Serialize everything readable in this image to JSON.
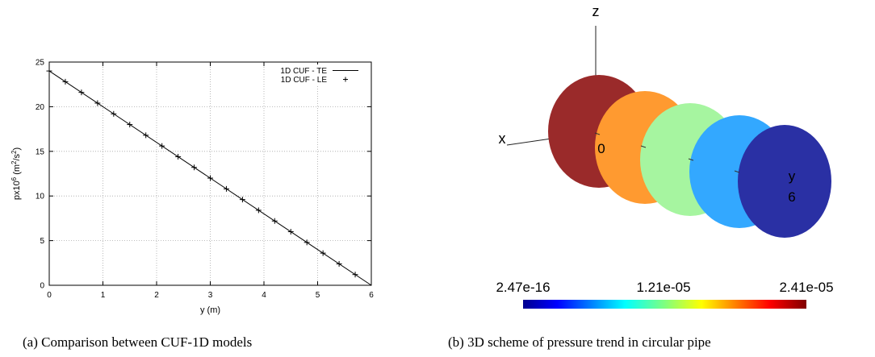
{
  "panel_a": {
    "caption": "(a)  Comparison between CUF-1D models"
  },
  "panel_b": {
    "caption": "(b) 3D scheme of pressure trend in circular pipe",
    "axis_labels": {
      "z": "z",
      "x": "x",
      "y": "y"
    },
    "point_labels": {
      "start": "0",
      "end": "6"
    },
    "disk_colors": [
      "#9a2a2a",
      "#ff9a30",
      "#a6f5a0",
      "#33a8ff",
      "#2a30a4"
    ],
    "colorbar": {
      "min_label": "2.47e-16",
      "mid_label": "1.21e-05",
      "max_label": "2.41e-05",
      "colormap": "jet"
    }
  },
  "chart_data": {
    "type": "line",
    "title": "",
    "xlabel": "y (m)",
    "ylabel_parts": {
      "base": "px10",
      "exp": "6",
      "unit_open": " (m",
      "unit_exp1": "2",
      "unit_mid": "/s",
      "unit_exp2": "2",
      "unit_close": ")"
    },
    "xlim": [
      0,
      6
    ],
    "ylim": [
      0,
      25
    ],
    "xticks": [
      "0",
      "1",
      "2",
      "3",
      "4",
      "5",
      "6"
    ],
    "yticks": [
      "0",
      "5",
      "10",
      "15",
      "20",
      "25"
    ],
    "grid": true,
    "legend_position": "top-right",
    "series": [
      {
        "name": "1D CUF - TE",
        "style": "line",
        "x": [
          0,
          6
        ],
        "y": [
          24,
          0
        ]
      },
      {
        "name": "1D CUF - LE",
        "style": "plus-marker",
        "x": [
          0,
          0.3,
          0.6,
          0.9,
          1.2,
          1.5,
          1.8,
          2.1,
          2.4,
          2.7,
          3.0,
          3.3,
          3.6,
          3.9,
          4.2,
          4.5,
          4.8,
          5.1,
          5.4,
          5.7
        ],
        "y": [
          24,
          22.8,
          21.6,
          20.4,
          19.2,
          18.0,
          16.8,
          15.6,
          14.4,
          13.2,
          12.0,
          10.8,
          9.6,
          8.4,
          7.2,
          6.0,
          4.8,
          3.6,
          2.4,
          1.2
        ]
      }
    ]
  }
}
